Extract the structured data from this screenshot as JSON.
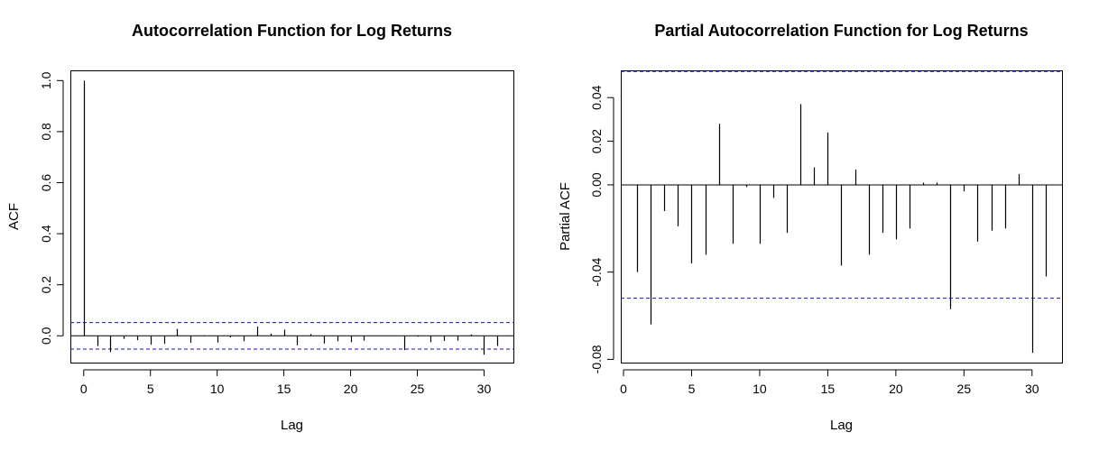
{
  "chart_data": [
    {
      "type": "bar",
      "title": "Autocorrelation Function for Log Returns",
      "xlabel": "Lag",
      "ylabel": "ACF",
      "xlim": [
        -1,
        32.2
      ],
      "ylim": [
        -0.105,
        1.04
      ],
      "x_ticks": [
        0,
        5,
        10,
        15,
        20,
        25,
        30
      ],
      "y_ticks": [
        0.0,
        0.2,
        0.4,
        0.6,
        0.8,
        1.0
      ],
      "y_tick_labels": [
        "0.0",
        "0.2",
        "0.4",
        "0.6",
        "0.8",
        "1.0"
      ],
      "confidence_band": [
        0.052,
        -0.052
      ],
      "zero_line": true,
      "grid": false,
      "lags": [
        0,
        1,
        2,
        3,
        4,
        5,
        6,
        7,
        8,
        9,
        10,
        11,
        12,
        13,
        14,
        15,
        16,
        17,
        18,
        19,
        20,
        21,
        22,
        23,
        24,
        25,
        26,
        27,
        28,
        29,
        30,
        31
      ],
      "values": [
        1.0,
        -0.04,
        -0.064,
        -0.012,
        -0.017,
        -0.035,
        -0.031,
        0.027,
        -0.027,
        -0.002,
        -0.026,
        -0.006,
        -0.021,
        0.036,
        0.008,
        0.024,
        -0.037,
        0.007,
        -0.03,
        -0.021,
        -0.025,
        -0.019,
        0.001,
        0.001,
        -0.056,
        -0.003,
        -0.025,
        -0.02,
        -0.019,
        0.005,
        -0.074,
        -0.04
      ]
    },
    {
      "type": "bar",
      "title": "Partial Autocorrelation Function for Log Returns",
      "xlabel": "Lag",
      "ylabel": "Partial ACF",
      "xlim": [
        -0.2,
        32.2
      ],
      "ylim": [
        -0.0815,
        0.0525
      ],
      "x_ticks": [
        0,
        5,
        10,
        15,
        20,
        25,
        30
      ],
      "y_ticks": [
        -0.08,
        -0.04,
        0.0,
        0.02,
        0.04
      ],
      "y_tick_labels": [
        "-0.08",
        "-0.04",
        "0.00",
        "0.02",
        "0.04"
      ],
      "confidence_band": [
        0.052,
        -0.052
      ],
      "zero_line": true,
      "grid": false,
      "lags": [
        1,
        2,
        3,
        4,
        5,
        6,
        7,
        8,
        9,
        10,
        11,
        12,
        13,
        14,
        15,
        16,
        17,
        18,
        19,
        20,
        21,
        22,
        23,
        24,
        25,
        26,
        27,
        28,
        29,
        30,
        31
      ],
      "values": [
        -0.04,
        -0.064,
        -0.012,
        -0.019,
        -0.036,
        -0.032,
        0.028,
        -0.027,
        -0.001,
        -0.027,
        -0.006,
        -0.022,
        0.037,
        0.008,
        0.024,
        -0.037,
        0.007,
        -0.032,
        -0.022,
        -0.025,
        -0.02,
        0.001,
        0.001,
        -0.057,
        -0.003,
        -0.026,
        -0.021,
        -0.02,
        0.005,
        -0.077,
        -0.042
      ]
    }
  ],
  "colors": {
    "bars": "#000000",
    "confidence_band": "#1010c8",
    "axes": "#000000"
  }
}
